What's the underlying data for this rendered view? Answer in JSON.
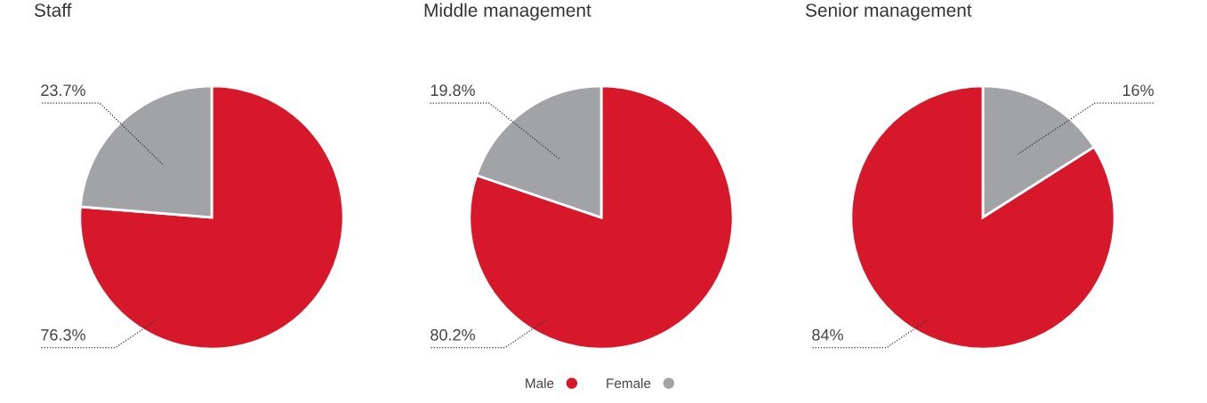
{
  "chart_data": [
    {
      "type": "pie",
      "title": "Staff",
      "categories": [
        "Male",
        "Female"
      ],
      "values": [
        76.3,
        23.7
      ],
      "colors": [
        "#d7182a",
        "#a2a3a6"
      ],
      "value_labels": [
        "76.3%",
        "23.7%"
      ],
      "legend": "bottom"
    },
    {
      "type": "pie",
      "title": "Middle management",
      "categories": [
        null,
        null
      ],
      "values": [
        80.2,
        19.8
      ],
      "colors": [
        "#d7182a",
        "#a2a3a6"
      ],
      "value_labels": [
        "80.2%",
        "19.8%"
      ]
    },
    {
      "type": "pie",
      "title": "Senior management",
      "categories": [
        null,
        null
      ],
      "values": [
        16,
        84
      ],
      "colors": [
        "#a2a3a6",
        "#d7182a"
      ],
      "value_labels": [
        "16%",
        "84%"
      ]
    }
  ]
}
